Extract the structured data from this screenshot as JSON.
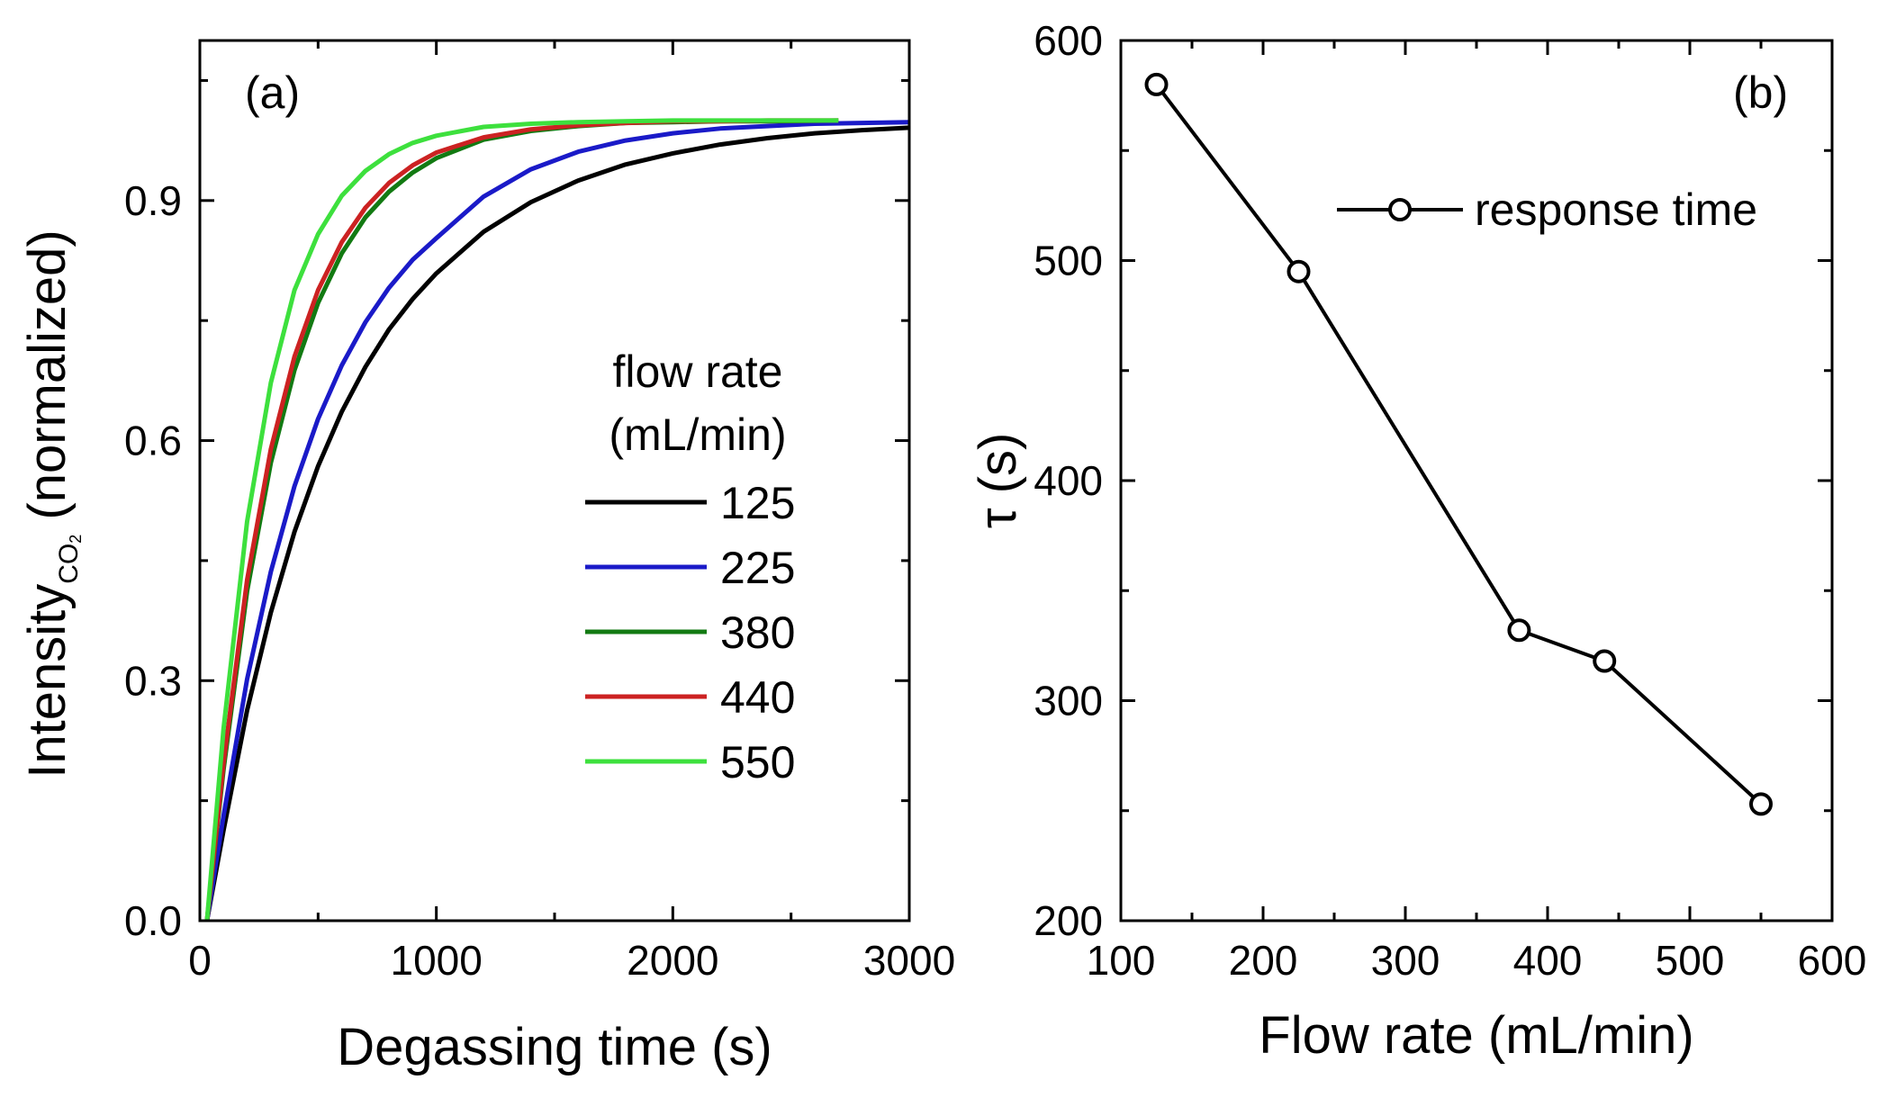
{
  "chart_data": [
    {
      "panel": "(a)",
      "type": "line",
      "xlabel": "Degassing time (s)",
      "ylabel_main": "Intensity",
      "ylabel_sub": "CO",
      "ylabel_sub2": "2",
      "ylabel_suffix": " (normalized)",
      "xlim": [
        0,
        3000
      ],
      "ylim": [
        0,
        1.1
      ],
      "xticks": [
        0,
        1000,
        2000,
        3000
      ],
      "xtick_labels": [
        "0",
        "1000",
        "2000",
        "3000"
      ],
      "yticks": [
        0.0,
        0.3,
        0.6,
        0.9
      ],
      "ytick_labels": [
        "0.0",
        "0.3",
        "0.6",
        "0.9"
      ],
      "legend_title_1": "flow rate",
      "legend_title_2": "(mL/min)",
      "series": [
        {
          "name": "125",
          "color": "#000000",
          "tau": 580,
          "x": [
            30,
            100,
            200,
            300,
            400,
            500,
            600,
            700,
            800,
            900,
            1000,
            1200,
            1400,
            1600,
            1800,
            2000,
            2200,
            2400,
            2600,
            2800,
            3000
          ],
          "y": [
            0.0,
            0.113,
            0.263,
            0.385,
            0.486,
            0.568,
            0.636,
            0.692,
            0.739,
            0.777,
            0.809,
            0.861,
            0.898,
            0.925,
            0.945,
            0.959,
            0.97,
            0.978,
            0.984,
            0.988,
            0.991
          ]
        },
        {
          "name": "225",
          "color": "#1a1ac8",
          "tau": 495,
          "x": [
            30,
            100,
            200,
            300,
            400,
            500,
            600,
            700,
            800,
            900,
            1000,
            1200,
            1400,
            1600,
            1800,
            2000,
            2200,
            2400,
            2600,
            2800,
            3000
          ],
          "y": [
            0.0,
            0.131,
            0.302,
            0.436,
            0.543,
            0.627,
            0.694,
            0.748,
            0.791,
            0.826,
            0.853,
            0.905,
            0.939,
            0.961,
            0.975,
            0.984,
            0.99,
            0.993,
            0.996,
            0.997,
            0.998
          ]
        },
        {
          "name": "380",
          "color": "#127a12",
          "tau": 332,
          "x": [
            30,
            100,
            200,
            300,
            400,
            500,
            600,
            700,
            800,
            900,
            1000,
            1200,
            1400,
            1600,
            1800,
            2000,
            2200,
            2400,
            2700
          ],
          "y": [
            0.0,
            0.189,
            0.412,
            0.572,
            0.688,
            0.772,
            0.834,
            0.879,
            0.911,
            0.935,
            0.953,
            0.976,
            0.987,
            0.993,
            0.997,
            0.998,
            0.999,
            0.999,
            1.0
          ]
        },
        {
          "name": "440",
          "color": "#cc2222",
          "tau": 318,
          "x": [
            30,
            100,
            200,
            300,
            400,
            500,
            600,
            700,
            800,
            900,
            1000,
            1200,
            1400,
            1600,
            1800,
            2000,
            2200,
            2400,
            2700
          ],
          "y": [
            0.0,
            0.197,
            0.426,
            0.589,
            0.705,
            0.788,
            0.848,
            0.891,
            0.922,
            0.944,
            0.96,
            0.979,
            0.989,
            0.994,
            0.997,
            0.999,
            0.999,
            1.0,
            1.0
          ]
        },
        {
          "name": "550",
          "color": "#3de03d",
          "tau": 253,
          "x": [
            30,
            100,
            200,
            300,
            400,
            500,
            600,
            700,
            800,
            900,
            1000,
            1200,
            1400,
            1600,
            1800,
            2000,
            2200,
            2400,
            2700
          ],
          "y": [
            0.0,
            0.24,
            0.499,
            0.672,
            0.788,
            0.858,
            0.906,
            0.937,
            0.958,
            0.972,
            0.981,
            0.992,
            0.996,
            0.998,
            0.999,
            1.0,
            1.0,
            1.0,
            1.0
          ]
        }
      ]
    },
    {
      "panel": "(b)",
      "type": "line",
      "xlabel": "Flow rate (mL/min)",
      "ylabel_greek": "τ",
      "ylabel_rest": "(s)",
      "xlim": [
        100,
        600
      ],
      "ylim": [
        200,
        600
      ],
      "xticks": [
        100,
        200,
        300,
        400,
        500,
        600
      ],
      "xtick_labels": [
        "100",
        "200",
        "300",
        "400",
        "500",
        "600"
      ],
      "yticks": [
        200,
        300,
        400,
        500,
        600
      ],
      "ytick_labels": [
        "200",
        "300",
        "400",
        "500",
        "600"
      ],
      "series": [
        {
          "name": "response time",
          "color": "#000000",
          "x": [
            125,
            225,
            380,
            440,
            550
          ],
          "y": [
            580,
            495,
            332,
            318,
            253
          ]
        }
      ]
    }
  ]
}
